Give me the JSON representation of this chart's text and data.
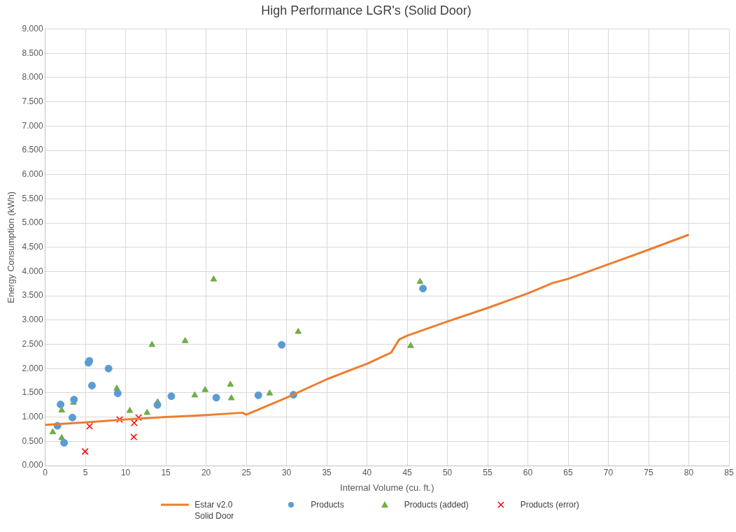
{
  "chart_data": {
    "type": "scatter",
    "title": "High Performance LGR's (Solid Door)",
    "xlabel": "Internal Volume (cu. ft.)",
    "ylabel": "Energy Consumption (kWh)",
    "xlim": [
      0,
      85
    ],
    "xticks": [
      0,
      5,
      10,
      15,
      20,
      25,
      30,
      35,
      40,
      45,
      50,
      55,
      60,
      65,
      70,
      75,
      80,
      85
    ],
    "ylim": [
      0,
      9
    ],
    "yticks": [
      {
        "value": 0,
        "label": "0.000"
      },
      {
        "value": 0.5,
        "label": "0.500"
      },
      {
        "value": 1,
        "label": "1.000"
      },
      {
        "value": 1.5,
        "label": "1.500"
      },
      {
        "value": 2,
        "label": "2.000"
      },
      {
        "value": 2.5,
        "label": "2.500"
      },
      {
        "value": 3,
        "label": "3.000"
      },
      {
        "value": 3.5,
        "label": "3.500"
      },
      {
        "value": 4,
        "label": "4.000"
      },
      {
        "value": 4.5,
        "label": "4.500"
      },
      {
        "value": 5,
        "label": "5.000"
      },
      {
        "value": 5.5,
        "label": "5.500"
      },
      {
        "value": 6,
        "label": "6.000"
      },
      {
        "value": 6.5,
        "label": "6.500"
      },
      {
        "value": 7,
        "label": "7.000"
      },
      {
        "value": 7.5,
        "label": "7.500"
      },
      {
        "value": 8,
        "label": "8.000"
      },
      {
        "value": 8.5,
        "label": "8.500"
      },
      {
        "value": 9,
        "label": "9.000"
      }
    ],
    "grid": true,
    "legend": "bottom",
    "series": [
      {
        "name": "Estar v2.0 Solid Door",
        "type": "line",
        "color": "#ed7d31",
        "marker": "none",
        "line_style": "solid",
        "x": [
          0,
          5,
          10,
          15,
          20,
          24.5,
          25,
          30,
          35,
          40,
          43,
          44,
          45,
          50,
          55,
          60,
          63,
          65,
          70,
          75,
          80
        ],
        "values": [
          0.84,
          0.89,
          0.95,
          1.0,
          1.04,
          1.09,
          1.05,
          1.4,
          1.78,
          2.1,
          2.33,
          2.6,
          2.68,
          2.97,
          3.25,
          3.55,
          3.76,
          3.85,
          4.15,
          4.45,
          4.76
        ]
      },
      {
        "name": "Products",
        "type": "scatter",
        "color": "#5b9bd5",
        "marker": "circle",
        "x": [
          1.52,
          1.91,
          2.35,
          3.38,
          3.58,
          5.37,
          5.49,
          5.81,
          7.87,
          9.01,
          13.95,
          15.68,
          21.26,
          26.49,
          29.4,
          30.86,
          46.96
        ],
        "values": [
          0.82,
          1.26,
          0.47,
          0.99,
          1.36,
          2.12,
          2.16,
          1.65,
          2.0,
          1.49,
          1.25,
          1.43,
          1.4,
          1.45,
          2.49,
          1.46,
          3.65
        ]
      },
      {
        "name": "Products (added)",
        "type": "scatter",
        "color": "#70ad47",
        "marker": "triangle",
        "x": [
          0.94,
          2.05,
          2.05,
          3.52,
          8.9,
          10.51,
          12.66,
          13.27,
          13.98,
          17.39,
          18.59,
          19.88,
          20.94,
          23.02,
          23.14,
          27.9,
          31.45,
          45.43,
          46.6
        ],
        "values": [
          0.69,
          1.14,
          0.57,
          1.3,
          1.59,
          1.13,
          1.09,
          2.49,
          1.31,
          2.57,
          1.45,
          1.56,
          3.84,
          1.67,
          1.39,
          1.49,
          2.76,
          2.47,
          3.79
        ]
      },
      {
        "name": "Products (error)",
        "type": "scatter",
        "color": "#ff0000",
        "marker": "cross",
        "x": [
          4.96,
          5.52,
          9.25,
          11.07,
          11.01,
          11.6
        ],
        "values": [
          0.29,
          0.81,
          0.95,
          0.88,
          0.59,
          0.99
        ]
      }
    ]
  }
}
